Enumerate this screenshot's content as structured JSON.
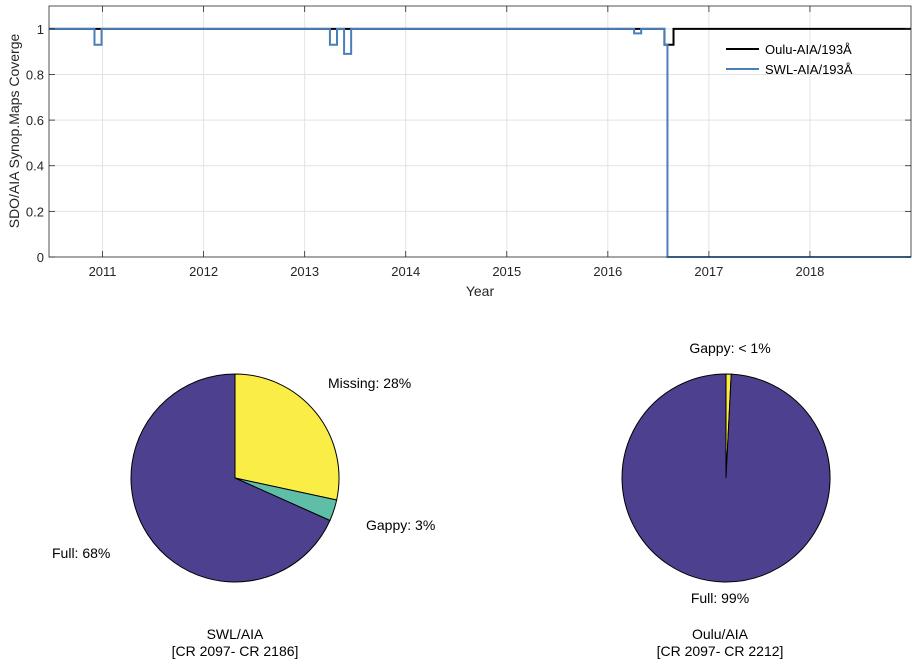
{
  "chart_data": [
    {
      "type": "line",
      "title": "",
      "xlabel": "Year",
      "ylabel": "SDO/AIA Synop.Maps Coverge",
      "xlim": [
        2010.47,
        2019.0
      ],
      "ylim": [
        0,
        1.1
      ],
      "xticks": [
        2011,
        2012,
        2013,
        2014,
        2015,
        2016,
        2017,
        2018
      ],
      "xtick_labels": [
        "2011",
        "2012",
        "2013",
        "2014",
        "2015",
        "2016",
        "2017",
        "2018"
      ],
      "yticks": [
        0,
        0.2,
        0.4,
        0.6,
        0.8,
        1
      ],
      "ytick_labels": [
        "0",
        "0.2",
        "0.4",
        "0.6",
        "0.8",
        "1"
      ],
      "grid": true,
      "legend_position": "top-right",
      "series": [
        {
          "name": "Oulu-AIA/193Å",
          "color": "#000000",
          "step": true,
          "x": [
            2010.47,
            2016.56,
            2016.56,
            2016.65,
            2016.65,
            2019.0
          ],
          "y": [
            1,
            1,
            0.93,
            0.93,
            1,
            1
          ]
        },
        {
          "name": "SWL-AIA/193Å",
          "color": "#4a7ebb",
          "step": true,
          "x": [
            2010.47,
            2010.92,
            2010.92,
            2010.99,
            2010.99,
            2013.25,
            2013.25,
            2013.32,
            2013.32,
            2013.39,
            2013.39,
            2013.46,
            2013.46,
            2016.26,
            2016.26,
            2016.33,
            2016.33,
            2016.56,
            2016.56,
            2016.59,
            2016.59,
            2019.0
          ],
          "y": [
            1,
            1,
            0.93,
            0.93,
            1,
            1,
            0.93,
            0.93,
            1,
            1,
            0.89,
            0.89,
            1,
            1,
            0.98,
            0.98,
            1,
            1,
            0.93,
            0.93,
            0,
            0
          ]
        }
      ]
    },
    {
      "type": "pie",
      "title_lines": [
        "SWL/AIA",
        "[CR 2097- CR 2186]"
      ],
      "slices": [
        {
          "label": "Missing: 28%",
          "value": 28.4,
          "color": "#f9ed46"
        },
        {
          "label": "Gappy: 3%",
          "value": 3.3,
          "color": "#5ebea8"
        },
        {
          "label": "Full: 68%",
          "value": 68.3,
          "color": "#4d418f"
        }
      ]
    },
    {
      "type": "pie",
      "title_lines": [
        "Oulu/AIA",
        "[CR 2097- CR 2212]"
      ],
      "slices": [
        {
          "label": "Gappy: < 1%",
          "value": 0.8,
          "color": "#f9ed46"
        },
        {
          "label": "Full: 99%",
          "value": 99.2,
          "color": "#4d418f"
        }
      ]
    }
  ]
}
